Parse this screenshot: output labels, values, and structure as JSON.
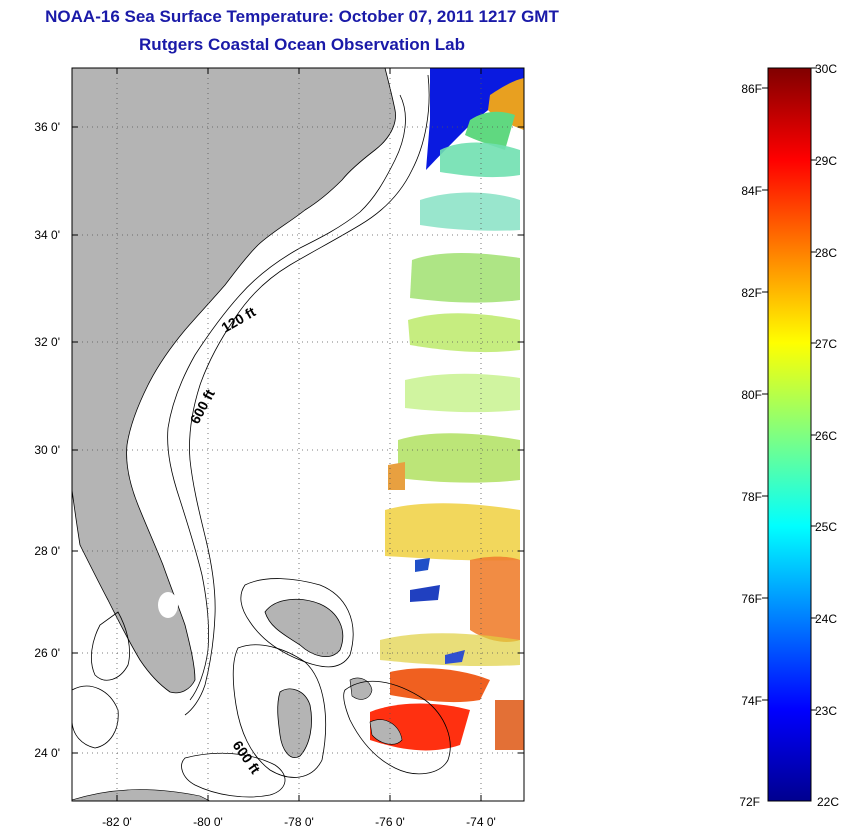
{
  "title": "NOAA-16 Sea Surface Temperature:  October 07, 2011 1217 GMT",
  "subtitle": "Rutgers Coastal Ocean Observation Lab",
  "map": {
    "lon_range": [
      -83,
      -73
    ],
    "lat_range": [
      23,
      37
    ],
    "lon_ticks": [
      "-82 0'",
      "-80 0'",
      "-78 0'",
      "-76 0'",
      "-74 0'"
    ],
    "lat_ticks": [
      "36 0'",
      "34 0'",
      "32 0'",
      "30 0'",
      "28 0'",
      "26 0'",
      "24 0'"
    ],
    "contour_labels": [
      "120 ft",
      "600 ft",
      "600 ft"
    ],
    "land_color": "#b4b4b4",
    "grid": "dotted"
  },
  "colorbar": {
    "f_labels": [
      "86F",
      "84F",
      "82F",
      "80F",
      "78F",
      "76F",
      "74F",
      "72F"
    ],
    "c_labels": [
      "30C",
      "29C",
      "28C",
      "27C",
      "26C",
      "25C",
      "24C",
      "23C",
      "22C"
    ],
    "min_c": 22,
    "max_c": 30,
    "colors": [
      "#00008f",
      "#0000ff",
      "#0080ff",
      "#00ffff",
      "#80ff80",
      "#ffff00",
      "#ff8000",
      "#ff0000",
      "#800000"
    ]
  }
}
